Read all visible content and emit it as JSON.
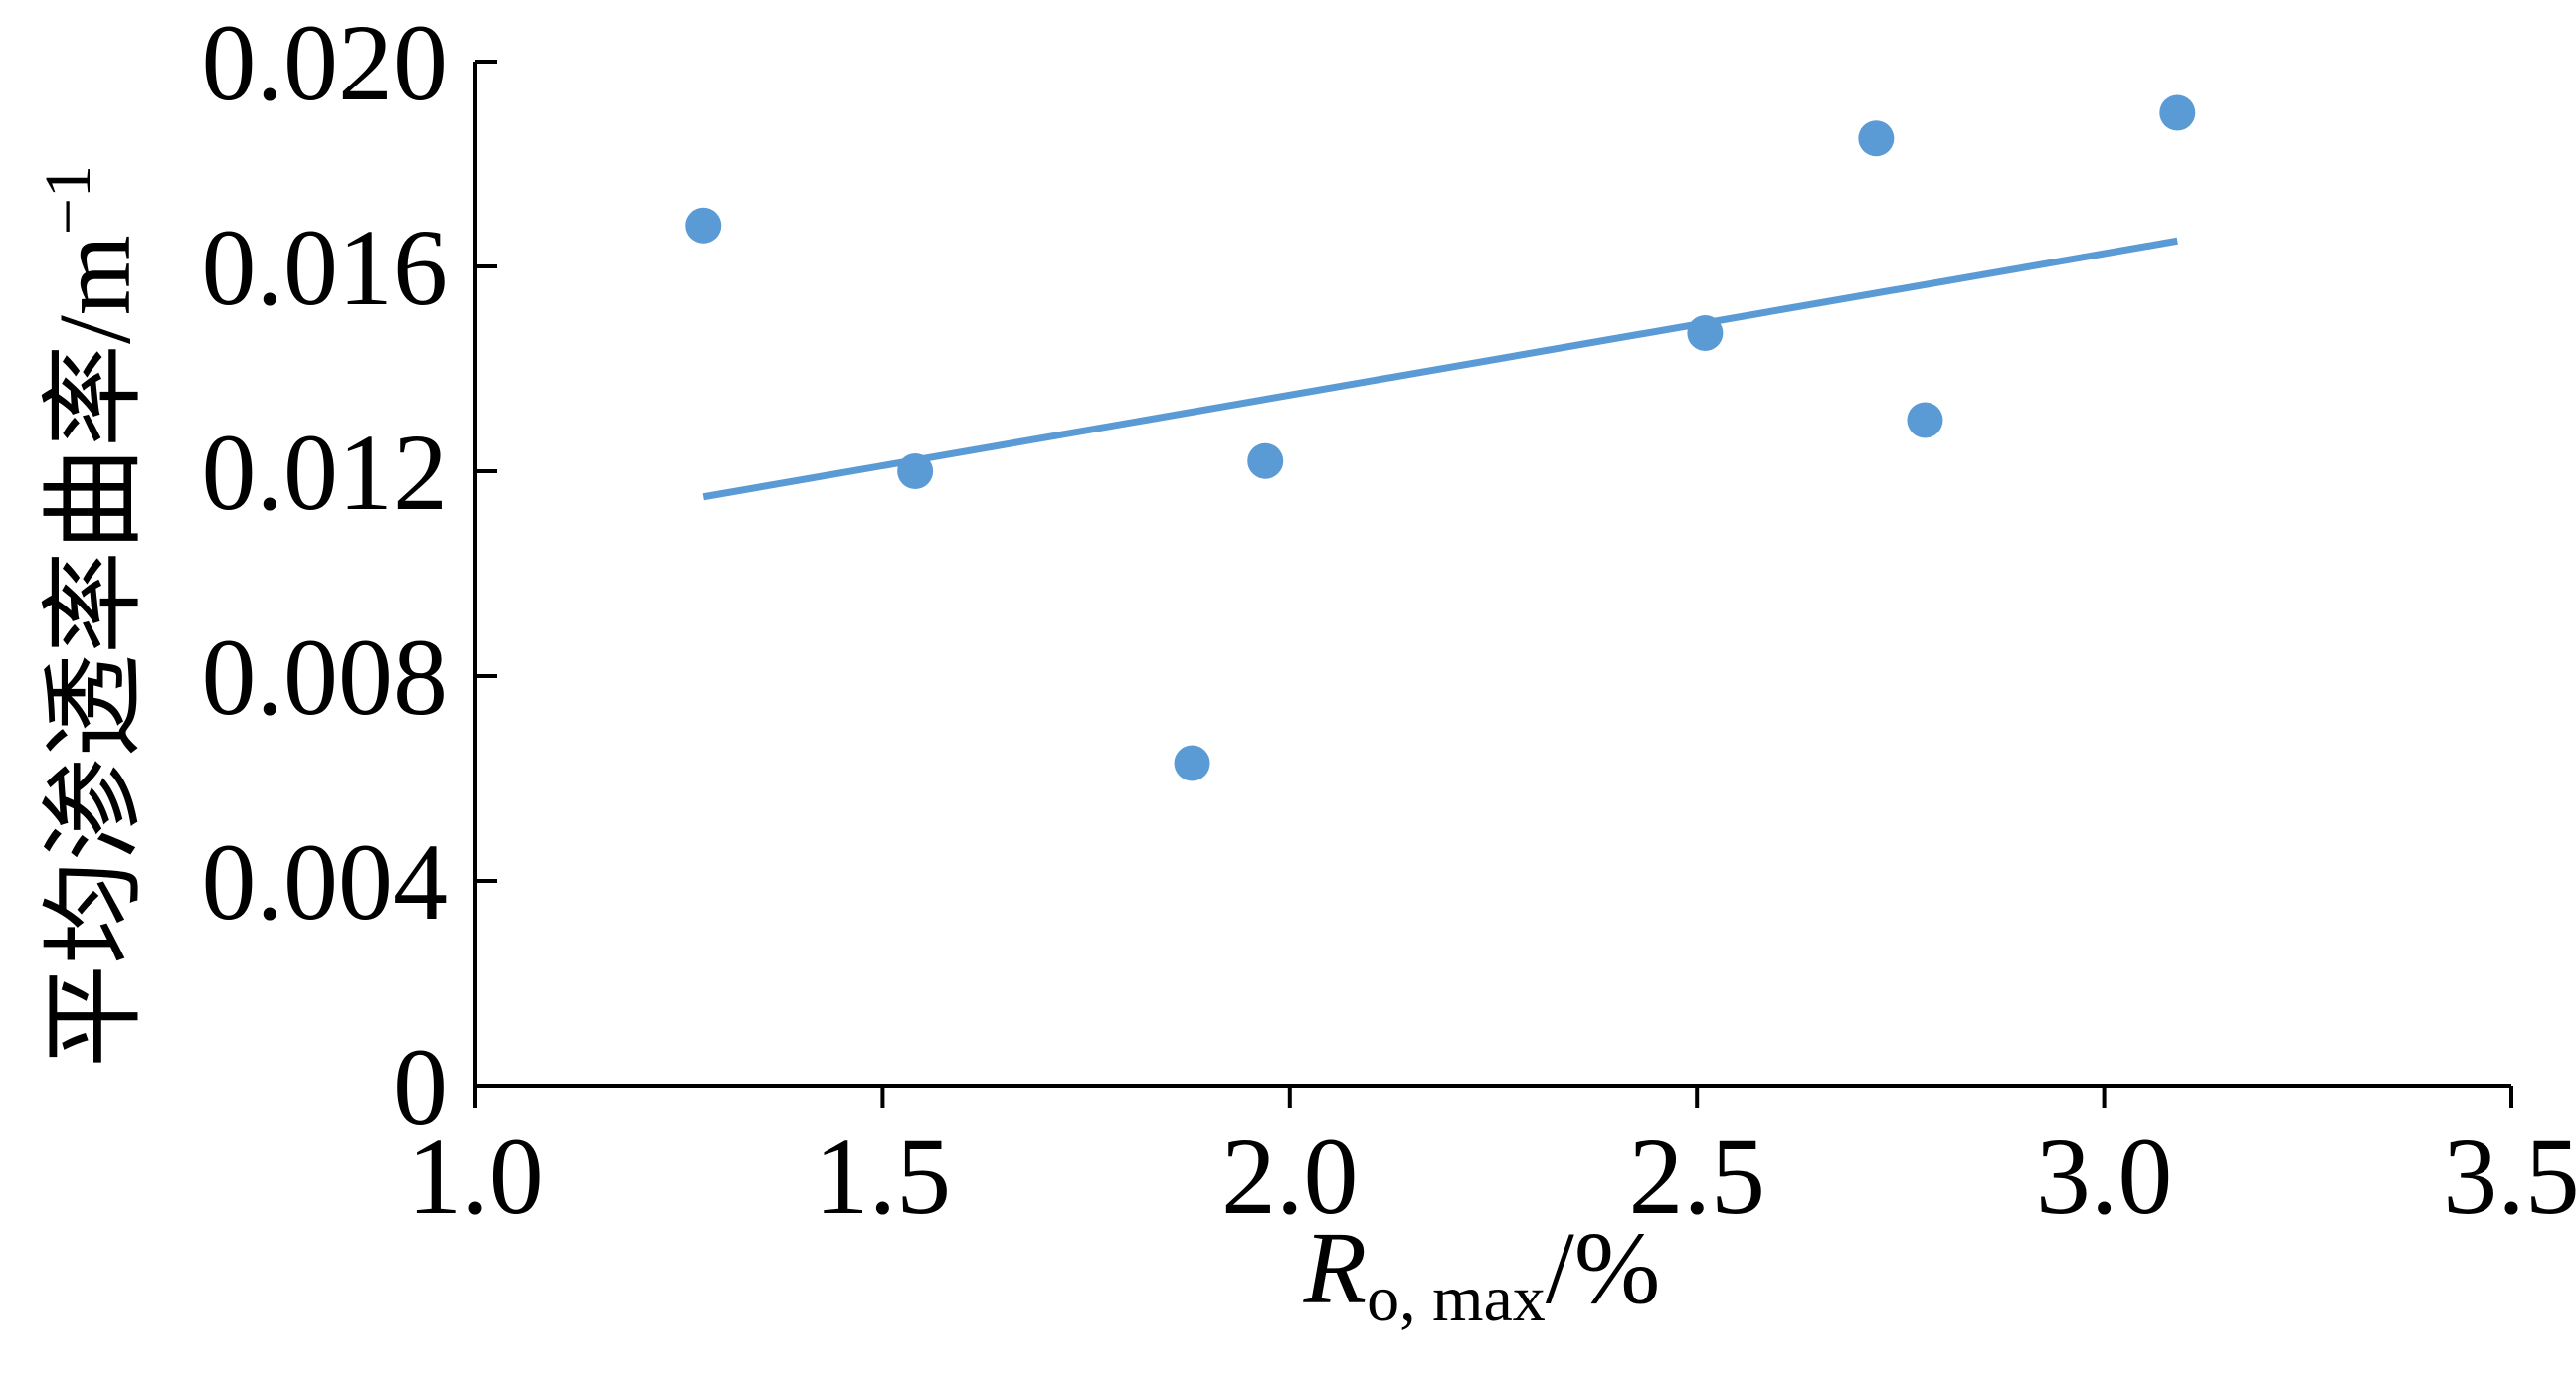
{
  "chart_data": {
    "type": "scatter",
    "title": "",
    "xlabel": {
      "main": "R",
      "subscript": "o, max",
      "suffix": "/%"
    },
    "ylabel": {
      "main": "平均渗透率曲率/m",
      "superscript": "−1"
    },
    "xlim": [
      1.0,
      3.5
    ],
    "ylim": [
      0,
      0.02
    ],
    "x_ticks": [
      1.0,
      1.5,
      2.0,
      2.5,
      3.0,
      3.5
    ],
    "x_tick_labels": [
      "1.0",
      "1.5",
      "2.0",
      "2.5",
      "3.0",
      "3.5"
    ],
    "y_ticks": [
      0,
      0.004,
      0.008,
      0.012,
      0.016,
      0.02
    ],
    "y_tick_labels": [
      "0",
      "0.004",
      "0.008",
      "0.012",
      "0.016",
      "0.020"
    ],
    "grid": false,
    "legend": "none",
    "series": [
      {
        "color": "#5b9bd5",
        "points": [
          {
            "x": 1.28,
            "y": 0.0168
          },
          {
            "x": 1.54,
            "y": 0.012
          },
          {
            "x": 1.88,
            "y": 0.0063
          },
          {
            "x": 1.97,
            "y": 0.0122
          },
          {
            "x": 2.51,
            "y": 0.0147
          },
          {
            "x": 2.72,
            "y": 0.0185
          },
          {
            "x": 2.78,
            "y": 0.013
          },
          {
            "x": 3.09,
            "y": 0.019
          }
        ]
      }
    ],
    "trendline": {
      "type": "linear",
      "color": "#5b9bd5",
      "start": {
        "x": 1.28,
        "y": 0.0115
      },
      "end": {
        "x": 3.09,
        "y": 0.0165
      }
    }
  }
}
